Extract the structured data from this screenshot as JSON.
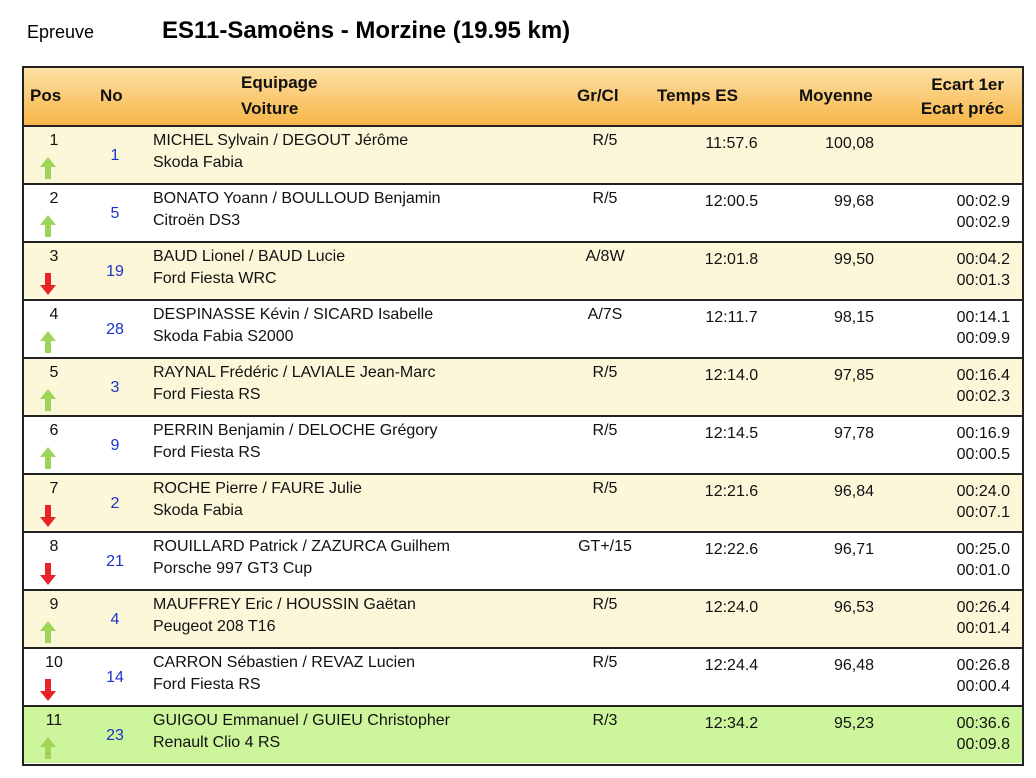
{
  "header": {
    "label": "Epreuve",
    "title": "ES11-Samoëns - Morzine (19.95 km)"
  },
  "table": {
    "columns": {
      "pos": "Pos",
      "no": "No",
      "crew": "Equipage",
      "car": "Voiture",
      "class": "Gr/Cl",
      "time": "Temps ES",
      "avg": "Moyenne",
      "gap_first": "Ecart 1er",
      "gap_prev": "Ecart préc"
    },
    "rows": [
      {
        "pos": "1",
        "no": "1",
        "crew": "MICHEL Sylvain / DEGOUT Jérôme",
        "car": "Skoda Fabia",
        "class": "R/5",
        "time": "11:57.6",
        "avg": "100,08",
        "trend": "up"
      },
      {
        "pos": "2",
        "no": "5",
        "crew": "BONATO Yoann / BOULLOUD Benjamin",
        "car": "Citroën DS3",
        "class": "R/5",
        "time": "12:00.5",
        "avg": "99,68",
        "gap_first": "00:02.9",
        "gap_prev": "00:02.9",
        "trend": "up"
      },
      {
        "pos": "3",
        "no": "19",
        "crew": "BAUD Lionel / BAUD Lucie",
        "car": "Ford Fiesta WRC",
        "class": "A/8W",
        "time": "12:01.8",
        "avg": "99,50",
        "gap_first": "00:04.2",
        "gap_prev": "00:01.3",
        "trend": "down"
      },
      {
        "pos": "4",
        "no": "28",
        "crew": "DESPINASSE Kévin / SICARD Isabelle",
        "car": "Skoda Fabia S2000",
        "class": "A/7S",
        "time": "12:11.7",
        "avg": "98,15",
        "gap_first": "00:14.1",
        "gap_prev": "00:09.9",
        "trend": "up"
      },
      {
        "pos": "5",
        "no": "3",
        "crew": "RAYNAL Frédéric / LAVIALE Jean-Marc",
        "car": "Ford Fiesta RS",
        "class": "R/5",
        "time": "12:14.0",
        "avg": "97,85",
        "gap_first": "00:16.4",
        "gap_prev": "00:02.3",
        "trend": "up"
      },
      {
        "pos": "6",
        "no": "9",
        "crew": "PERRIN Benjamin / DELOCHE Grégory",
        "car": "Ford Fiesta RS",
        "class": "R/5",
        "time": "12:14.5",
        "avg": "97,78",
        "gap_first": "00:16.9",
        "gap_prev": "00:00.5",
        "trend": "up"
      },
      {
        "pos": "7",
        "no": "2",
        "crew": "ROCHE Pierre / FAURE Julie",
        "car": "Skoda Fabia",
        "class": "R/5",
        "time": "12:21.6",
        "avg": "96,84",
        "gap_first": "00:24.0",
        "gap_prev": "00:07.1",
        "trend": "down"
      },
      {
        "pos": "8",
        "no": "21",
        "crew": "ROUILLARD Patrick / ZAZURCA Guilhem",
        "car": "Porsche 997 GT3 Cup",
        "class": "GT+/15",
        "time": "12:22.6",
        "avg": "96,71",
        "gap_first": "00:25.0",
        "gap_prev": "00:01.0",
        "trend": "down"
      },
      {
        "pos": "9",
        "no": "4",
        "crew": "MAUFFREY Eric / HOUSSIN Gaëtan",
        "car": "Peugeot 208 T16",
        "class": "R/5",
        "time": "12:24.0",
        "avg": "96,53",
        "gap_first": "00:26.4",
        "gap_prev": "00:01.4",
        "trend": "up"
      },
      {
        "pos": "10",
        "no": "14",
        "crew": "CARRON Sébastien / REVAZ Lucien",
        "car": "Ford Fiesta RS",
        "class": "R/5",
        "time": "12:24.4",
        "avg": "96,48",
        "gap_first": "00:26.8",
        "gap_prev": "00:00.4",
        "trend": "down"
      },
      {
        "pos": "11",
        "no": "23",
        "crew": "GUIGOU Emmanuel / GUIEU Christopher",
        "car": "Renault Clio 4 RS",
        "class": "R/3",
        "time": "12:34.2",
        "avg": "95,23",
        "gap_first": "00:36.6",
        "gap_prev": "00:09.8",
        "trend": "up",
        "highlight": true
      }
    ]
  }
}
